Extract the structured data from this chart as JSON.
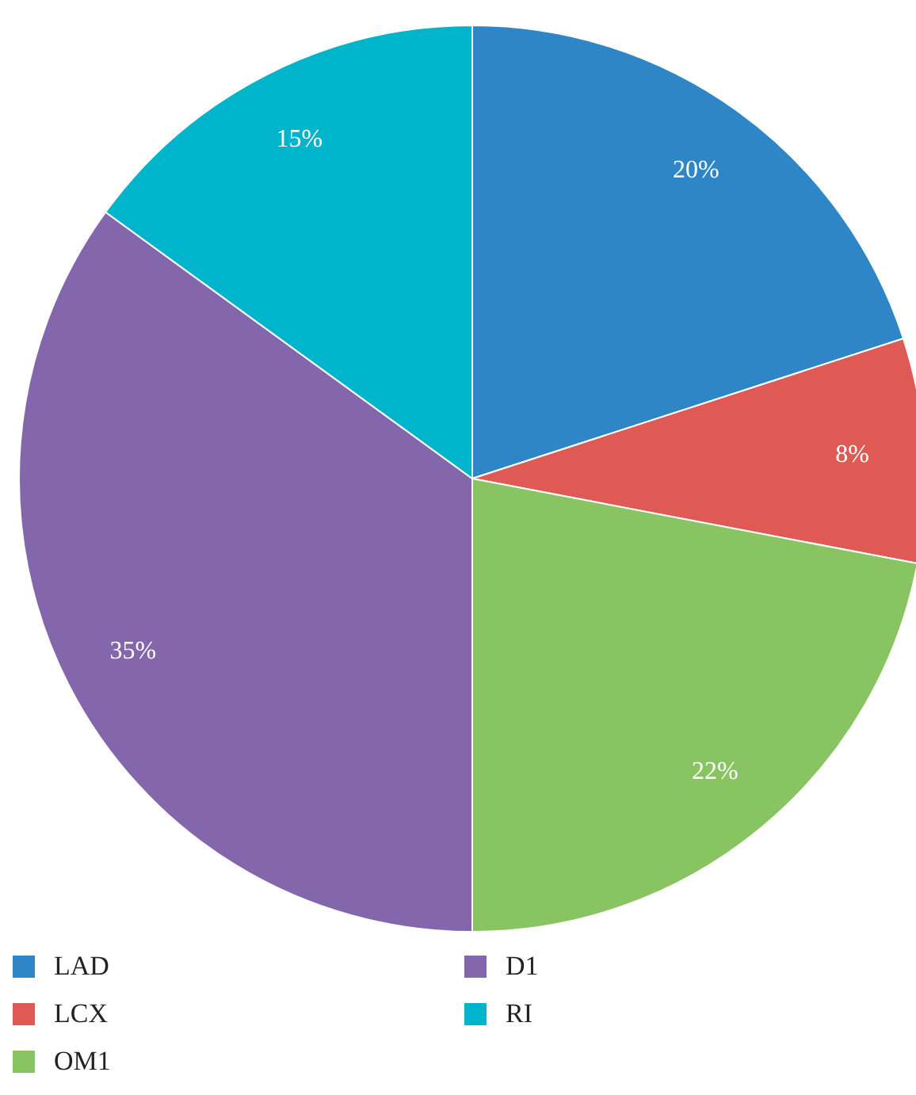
{
  "chart_data": {
    "type": "pie",
    "categories": [
      "LAD",
      "LCX",
      "OM1",
      "D1",
      "RI"
    ],
    "values": [
      20,
      8,
      22,
      35,
      15
    ],
    "colors": [
      "#2e86c6",
      "#e05a55",
      "#88c462",
      "#8466ac",
      "#00b4cc"
    ],
    "value_labels": [
      "20%",
      "8%",
      "22%",
      "35%",
      "15%"
    ],
    "legend": "bottom"
  }
}
